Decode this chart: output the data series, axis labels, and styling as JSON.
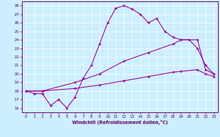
{
  "xlabel": "Windchill (Refroidissement éolien,°C)",
  "bg_color": "#cceeff",
  "line_color": "#990099",
  "grid_color": "#ffffff",
  "xlim": [
    -0.5,
    23.5
  ],
  "ylim": [
    15.5,
    28.5
  ],
  "xticks": [
    0,
    1,
    2,
    3,
    4,
    5,
    6,
    7,
    8,
    9,
    10,
    11,
    12,
    13,
    14,
    15,
    16,
    17,
    18,
    19,
    20,
    21,
    22,
    23
  ],
  "yticks": [
    16,
    17,
    18,
    19,
    20,
    21,
    22,
    23,
    24,
    25,
    26,
    27,
    28
  ],
  "line1_x": [
    0,
    1,
    2,
    3,
    4,
    5,
    6,
    7,
    8,
    9,
    10,
    11,
    12,
    13,
    14,
    15,
    16,
    17,
    18,
    19,
    20,
    21,
    22,
    23
  ],
  "line1_y": [
    18.0,
    17.7,
    17.7,
    16.3,
    17.0,
    16.0,
    17.3,
    19.5,
    21.0,
    23.5,
    26.0,
    27.7,
    28.0,
    27.6,
    27.0,
    26.0,
    26.5,
    25.0,
    24.3,
    24.0,
    24.0,
    23.0,
    21.0,
    20.0
  ],
  "line2_x": [
    0,
    2,
    6,
    9,
    12,
    15,
    18,
    19,
    21,
    22,
    23
  ],
  "line2_y": [
    18.0,
    18.0,
    19.0,
    20.0,
    21.5,
    22.5,
    23.5,
    24.0,
    24.0,
    20.5,
    20.0
  ],
  "line3_x": [
    0,
    2,
    6,
    9,
    12,
    15,
    18,
    19,
    21,
    22,
    23
  ],
  "line3_y": [
    18.0,
    18.0,
    18.3,
    18.7,
    19.2,
    19.7,
    20.2,
    20.3,
    20.5,
    20.0,
    19.7
  ]
}
